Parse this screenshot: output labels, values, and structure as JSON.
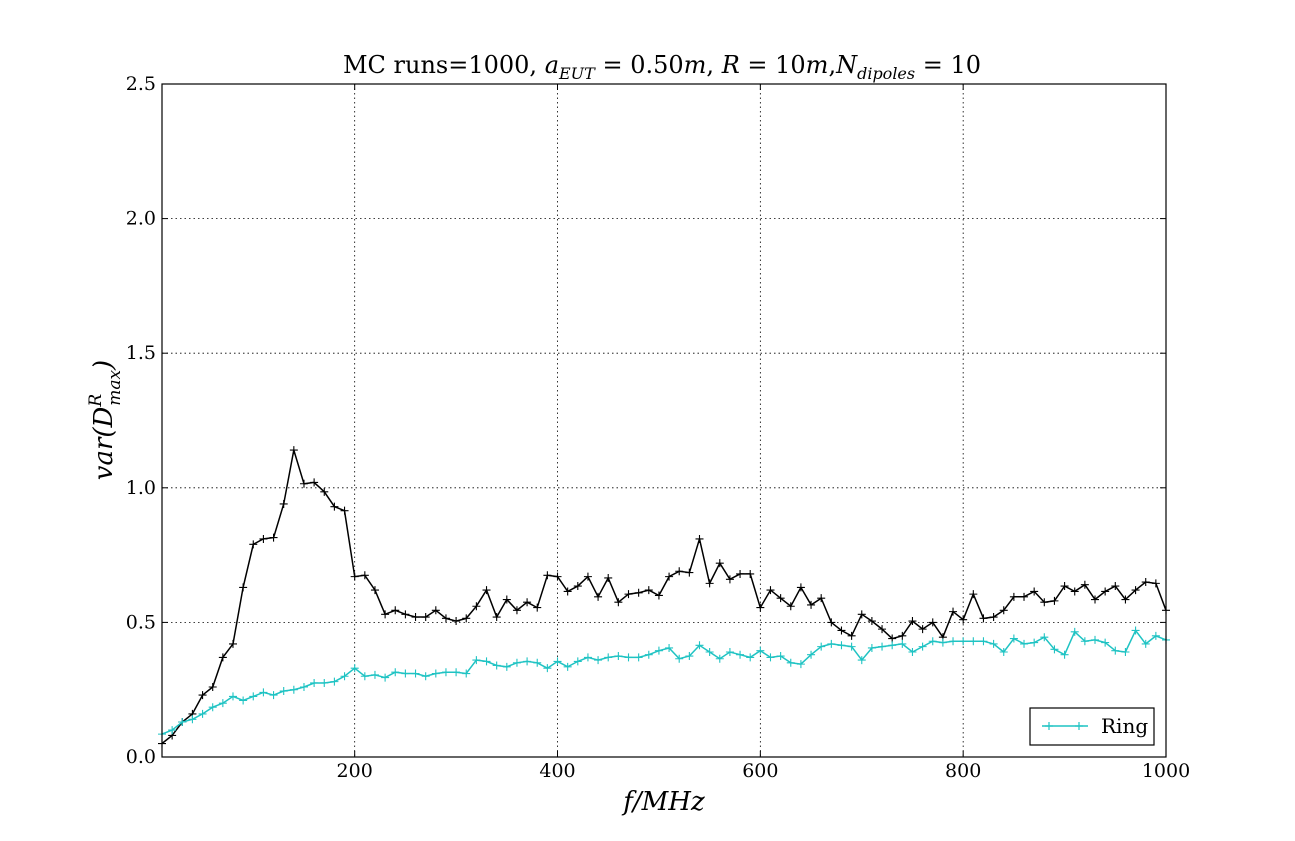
{
  "chart_data": {
    "type": "line",
    "title": "MC runs=1000, a_EUT = 0.50m, R = 10m, N_dipoles = 10",
    "title_parts": {
      "prefix": "MC runs=1000, ",
      "a": "a",
      "a_sub": "EUT",
      "a_val": " = 0.50",
      "a_unit": "m",
      "sep1": ", ",
      "r": "R",
      "r_val": " = 10",
      "r_unit": "m",
      "sep2": ",",
      "n": "N",
      "n_sub": "dipoles",
      "n_val": " = 10"
    },
    "xlabel": "f/MHz",
    "ylabel_parts": {
      "fn": "var(",
      "d": "D",
      "sup": "R",
      "sub": "max",
      "close": ")"
    },
    "xlim": [
      10,
      1000
    ],
    "ylim": [
      0,
      2.5
    ],
    "xticks": [
      200,
      400,
      600,
      800,
      1000
    ],
    "yticks": [
      0.0,
      0.5,
      1.0,
      1.5,
      2.0,
      2.5
    ],
    "ytick_labels": [
      "0.0",
      "0.5",
      "1.0",
      "1.5",
      "2.0",
      "2.5"
    ],
    "grid": true,
    "legend_position": "bottom-right",
    "legend_entries": [
      "Ring"
    ],
    "x": [
      10,
      20,
      30,
      40,
      50,
      60,
      70,
      80,
      90,
      100,
      110,
      120,
      130,
      140,
      150,
      160,
      170,
      180,
      190,
      200,
      210,
      220,
      230,
      240,
      250,
      260,
      270,
      280,
      290,
      300,
      310,
      320,
      330,
      340,
      350,
      360,
      370,
      380,
      390,
      400,
      410,
      420,
      430,
      440,
      450,
      460,
      470,
      480,
      490,
      500,
      510,
      520,
      530,
      540,
      550,
      560,
      570,
      580,
      590,
      600,
      610,
      620,
      630,
      640,
      650,
      660,
      670,
      680,
      690,
      700,
      710,
      720,
      730,
      740,
      750,
      760,
      770,
      780,
      790,
      800,
      810,
      820,
      830,
      840,
      850,
      860,
      870,
      880,
      890,
      900,
      910,
      920,
      930,
      940,
      950,
      960,
      970,
      980,
      990,
      1000
    ],
    "series": [
      {
        "name": "",
        "color": "#000000",
        "values": [
          0.05,
          0.08,
          0.13,
          0.16,
          0.23,
          0.26,
          0.37,
          0.42,
          0.63,
          0.79,
          0.81,
          0.815,
          0.94,
          1.14,
          1.015,
          1.02,
          0.985,
          0.93,
          0.915,
          0.67,
          0.675,
          0.62,
          0.53,
          0.545,
          0.53,
          0.52,
          0.52,
          0.545,
          0.515,
          0.505,
          0.515,
          0.56,
          0.62,
          0.52,
          0.585,
          0.545,
          0.575,
          0.555,
          0.675,
          0.67,
          0.615,
          0.635,
          0.67,
          0.595,
          0.665,
          0.575,
          0.605,
          0.61,
          0.62,
          0.6,
          0.67,
          0.69,
          0.685,
          0.81,
          0.645,
          0.72,
          0.66,
          0.68,
          0.68,
          0.555,
          0.62,
          0.59,
          0.56,
          0.63,
          0.565,
          0.59,
          0.5,
          0.47,
          0.45,
          0.53,
          0.505,
          0.475,
          0.44,
          0.45,
          0.505,
          0.475,
          0.5,
          0.445,
          0.54,
          0.51,
          0.605,
          0.515,
          0.52,
          0.545,
          0.595,
          0.595,
          0.615,
          0.575,
          0.58,
          0.635,
          0.615,
          0.64,
          0.585,
          0.615,
          0.635,
          0.585,
          0.62,
          0.65,
          0.645,
          0.545
        ]
      },
      {
        "name": "Ring",
        "color": "#1fc3c3",
        "values": [
          0.085,
          0.1,
          0.13,
          0.14,
          0.16,
          0.185,
          0.2,
          0.225,
          0.21,
          0.225,
          0.24,
          0.23,
          0.245,
          0.25,
          0.26,
          0.275,
          0.275,
          0.28,
          0.3,
          0.33,
          0.3,
          0.305,
          0.295,
          0.315,
          0.31,
          0.31,
          0.3,
          0.31,
          0.315,
          0.315,
          0.31,
          0.36,
          0.355,
          0.34,
          0.335,
          0.35,
          0.355,
          0.35,
          0.33,
          0.355,
          0.335,
          0.355,
          0.37,
          0.36,
          0.37,
          0.375,
          0.37,
          0.37,
          0.38,
          0.395,
          0.405,
          0.365,
          0.375,
          0.415,
          0.39,
          0.365,
          0.39,
          0.38,
          0.37,
          0.395,
          0.37,
          0.375,
          0.35,
          0.345,
          0.38,
          0.41,
          0.42,
          0.415,
          0.41,
          0.36,
          0.405,
          0.41,
          0.415,
          0.42,
          0.39,
          0.41,
          0.43,
          0.425,
          0.43,
          0.43,
          0.43,
          0.43,
          0.42,
          0.39,
          0.44,
          0.42,
          0.425,
          0.445,
          0.4,
          0.38,
          0.465,
          0.43,
          0.435,
          0.425,
          0.395,
          0.39,
          0.47,
          0.42,
          0.45,
          0.435
        ]
      }
    ]
  }
}
